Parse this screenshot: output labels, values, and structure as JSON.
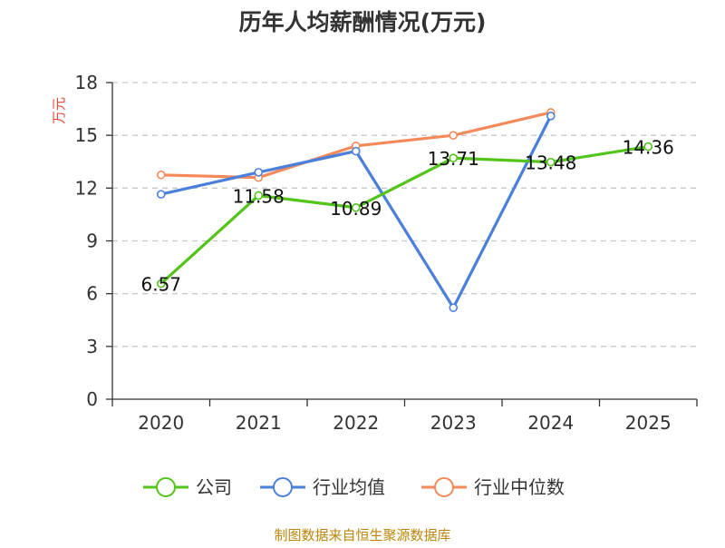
{
  "chart_data": {
    "type": "line",
    "title": "历年人均薪酬情况(万元)",
    "ylabel": "万元",
    "xlabel": "",
    "categories": [
      "2020",
      "2021",
      "2022",
      "2023",
      "2024",
      "2025"
    ],
    "ylim": [
      0,
      18
    ],
    "yticks": [
      0,
      3,
      6,
      9,
      12,
      15,
      18
    ],
    "grid": "horizontal-dashed",
    "legend_position": "bottom",
    "series": [
      {
        "name": "公司",
        "color": "#52c41a",
        "values": [
          6.57,
          11.58,
          10.89,
          13.71,
          13.48,
          14.36
        ],
        "labels": [
          "6.57",
          "11.58",
          "10.89",
          "13.71",
          "13.48",
          "14.36"
        ]
      },
      {
        "name": "行业均值",
        "color": "#4a7fdb",
        "values": [
          11.65,
          12.9,
          14.1,
          5.2,
          16.1,
          null
        ]
      },
      {
        "name": "行业中位数",
        "color": "#f5895a",
        "values": [
          12.75,
          12.6,
          14.4,
          15.0,
          16.3,
          null
        ]
      }
    ]
  },
  "source_note": "制图数据来自恒生聚源数据库"
}
